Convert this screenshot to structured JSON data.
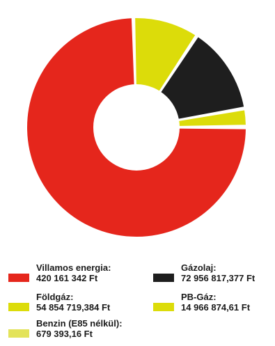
{
  "chart_data": {
    "type": "pie",
    "donut": true,
    "title": "",
    "slices": [
      {
        "label": "Villamos energia:",
        "value_text": "420 161 342 Ft",
        "value": 420161342,
        "color": "#e5261c"
      },
      {
        "label": "Földgáz:",
        "value_text": "54 854 719,384 Ft",
        "value": 54854719.384,
        "color": "#dcdc0a"
      },
      {
        "label": "Gázolaj:",
        "value_text": "72 956 817,377 Ft",
        "value": 72956817.377,
        "color": "#1e1e1e"
      },
      {
        "label": "PB-Gáz:",
        "value_text": "14 966 874,61 Ft",
        "value": 14966874.61,
        "color": "#dcdc0a"
      },
      {
        "label": "Benzin (E85 nélkül):",
        "value_text": "679 393,16 Ft",
        "value": 679393.16,
        "color": "#e3e35a"
      }
    ],
    "legend_placement": "bottom"
  }
}
